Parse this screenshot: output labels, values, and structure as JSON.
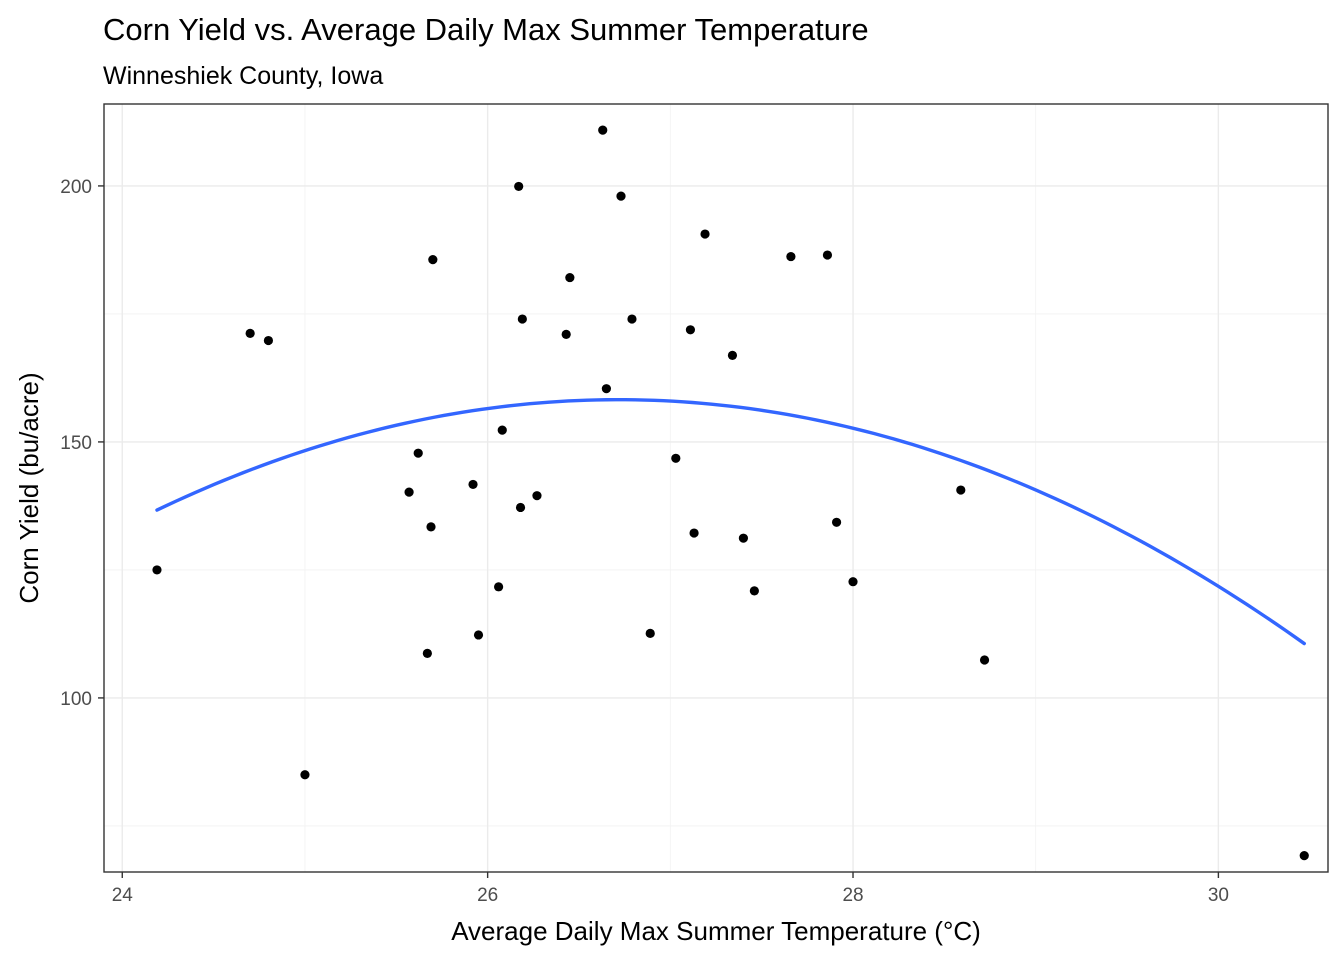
{
  "chart_data": {
    "type": "scatter",
    "title": "Corn Yield vs. Average Daily Max Summer Temperature",
    "subtitle": "Winneshiek County, Iowa",
    "xlabel": "Average Daily Max Summer Temperature (°C)",
    "ylabel": "Corn Yield (bu/acre)",
    "xlim": [
      23.9,
      30.6
    ],
    "ylim": [
      66,
      216
    ],
    "x_ticks": [
      24,
      26,
      28,
      30
    ],
    "y_ticks": [
      100,
      150,
      200
    ],
    "x_tick_labels": [
      "24",
      "26",
      "28",
      "30"
    ],
    "y_tick_labels": [
      "100",
      "150",
      "200"
    ],
    "grid": true,
    "point_color": "#000000",
    "fit_color": "#3366ff",
    "points": [
      {
        "x": 24.19,
        "y": 125.0
      },
      {
        "x": 24.7,
        "y": 171.2
      },
      {
        "x": 24.8,
        "y": 169.8
      },
      {
        "x": 25.0,
        "y": 85.0
      },
      {
        "x": 25.57,
        "y": 140.2
      },
      {
        "x": 25.62,
        "y": 147.8
      },
      {
        "x": 25.67,
        "y": 108.7
      },
      {
        "x": 25.69,
        "y": 133.4
      },
      {
        "x": 25.7,
        "y": 185.6
      },
      {
        "x": 25.92,
        "y": 141.7
      },
      {
        "x": 25.95,
        "y": 112.3
      },
      {
        "x": 26.06,
        "y": 121.7
      },
      {
        "x": 26.08,
        "y": 152.3
      },
      {
        "x": 26.17,
        "y": 199.9
      },
      {
        "x": 26.18,
        "y": 137.2
      },
      {
        "x": 26.19,
        "y": 174.0
      },
      {
        "x": 26.27,
        "y": 139.5
      },
      {
        "x": 26.43,
        "y": 171.0
      },
      {
        "x": 26.45,
        "y": 182.1
      },
      {
        "x": 26.63,
        "y": 210.9
      },
      {
        "x": 26.65,
        "y": 160.4
      },
      {
        "x": 26.73,
        "y": 198.0
      },
      {
        "x": 26.79,
        "y": 174.0
      },
      {
        "x": 26.89,
        "y": 112.6
      },
      {
        "x": 27.03,
        "y": 146.8
      },
      {
        "x": 27.11,
        "y": 171.9
      },
      {
        "x": 27.13,
        "y": 132.2
      },
      {
        "x": 27.19,
        "y": 190.6
      },
      {
        "x": 27.34,
        "y": 166.9
      },
      {
        "x": 27.4,
        "y": 131.2
      },
      {
        "x": 27.46,
        "y": 120.9
      },
      {
        "x": 27.66,
        "y": 186.2
      },
      {
        "x": 27.86,
        "y": 186.5
      },
      {
        "x": 27.91,
        "y": 134.3
      },
      {
        "x": 28.0,
        "y": 122.7
      },
      {
        "x": 28.59,
        "y": 140.6
      },
      {
        "x": 28.72,
        "y": 107.4
      },
      {
        "x": 30.47,
        "y": 69.2
      }
    ],
    "fit": {
      "method": "quadratic",
      "x_range": [
        24.19,
        30.47
      ],
      "coefficients": {
        "a": -3.38,
        "b": 180.6,
        "c": -2254.2
      }
    }
  }
}
